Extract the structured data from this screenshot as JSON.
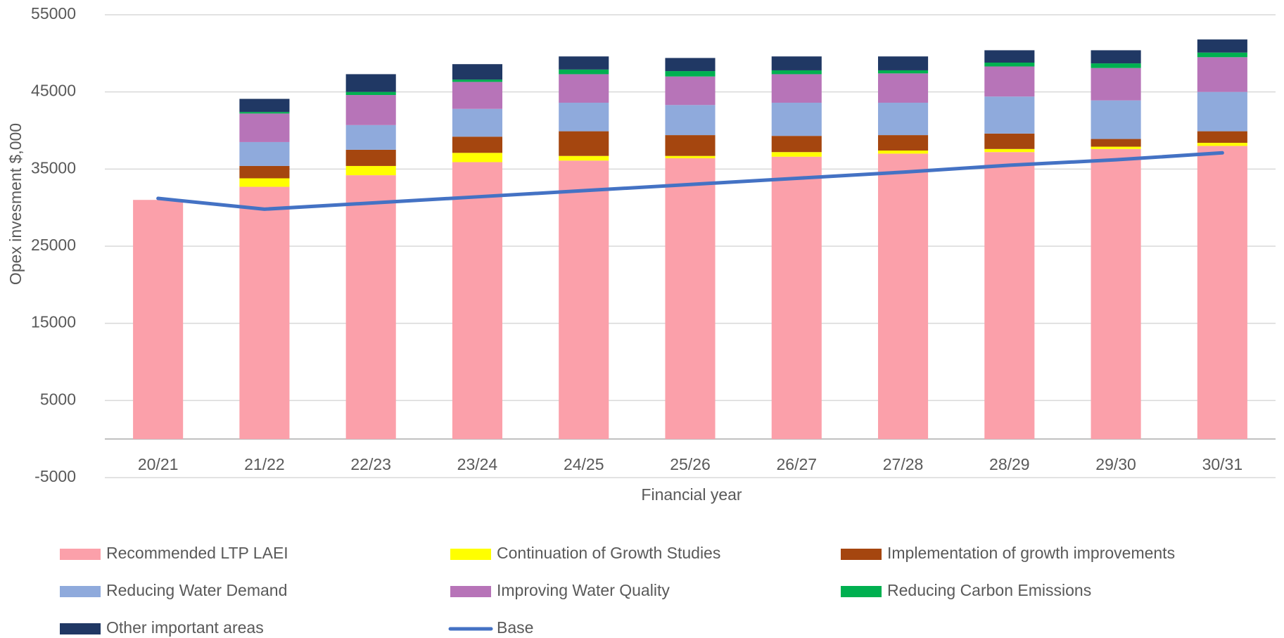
{
  "chart_data": {
    "type": "bar",
    "stacked": true,
    "x_label": "Financial year",
    "y_label": "Opex invesment $,000",
    "categories": [
      "20/21",
      "21/22",
      "22/23",
      "23/24",
      "24/25",
      "25/26",
      "26/27",
      "27/28",
      "28/29",
      "29/30",
      "30/31"
    ],
    "ylim": [
      -5000,
      55000
    ],
    "yticks": [
      -5000,
      5000,
      15000,
      25000,
      35000,
      45000,
      55000
    ],
    "grid": true,
    "series": [
      {
        "name": "Recommended LTP LAEI",
        "color": "#fba0aa",
        "values": [
          31000,
          32700,
          34200,
          35900,
          36100,
          36400,
          36600,
          37000,
          37200,
          37600,
          38000
        ]
      },
      {
        "name": "Continuation of Growth Studies",
        "color": "#ffff00",
        "values": [
          0,
          1100,
          1200,
          1200,
          600,
          300,
          600,
          400,
          400,
          300,
          400
        ]
      },
      {
        "name": "Implementation of growth improvements",
        "color": "#a5460f",
        "values": [
          0,
          1600,
          2100,
          2100,
          3200,
          2700,
          2100,
          2000,
          2000,
          1000,
          1500
        ]
      },
      {
        "name": "Reducing Water Demand",
        "color": "#8faadc",
        "values": [
          0,
          3100,
          3200,
          3600,
          3700,
          3900,
          4300,
          4200,
          4800,
          5000,
          5100
        ]
      },
      {
        "name": "Improving Water Quality",
        "color": "#b774b8",
        "values": [
          0,
          3700,
          3900,
          3500,
          3700,
          3700,
          3700,
          3800,
          3900,
          4200,
          4500
        ]
      },
      {
        "name": "Reducing Carbon Emissions",
        "color": "#00b050",
        "values": [
          0,
          200,
          400,
          300,
          600,
          700,
          500,
          400,
          500,
          600,
          600
        ]
      },
      {
        "name": "Other important areas",
        "color": "#203864",
        "values": [
          0,
          1700,
          2300,
          2000,
          1700,
          1700,
          1800,
          1800,
          1600,
          1700,
          1700
        ]
      },
      {
        "name": "Base",
        "type": "line",
        "color": "#4472c4",
        "values": [
          31200,
          29800,
          30600,
          31400,
          32200,
          33000,
          33800,
          34600,
          35500,
          36200,
          37100
        ]
      }
    ]
  }
}
